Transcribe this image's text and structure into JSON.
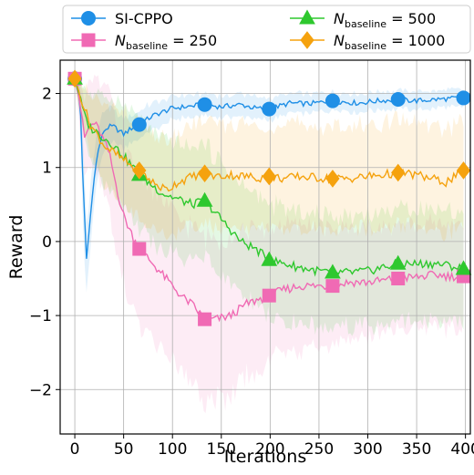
{
  "chart_data": {
    "type": "line",
    "xlabel": "Iterations",
    "ylabel": "Reward",
    "xlim": [
      -15,
      405
    ],
    "ylim": [
      -2.6,
      2.45
    ],
    "x_ticks": [
      0,
      50,
      100,
      150,
      200,
      250,
      300,
      350,
      400
    ],
    "y_ticks": [
      -2,
      -1,
      0,
      1,
      2
    ],
    "y_tick_labels": [
      "−2",
      "−1",
      "0",
      "1",
      "2"
    ],
    "grid": true,
    "legend_position": "top",
    "series": [
      {
        "name": "SI-CPPO",
        "color": "#1f8fe6",
        "marker": "circle",
        "x": [
          0,
          3,
          6,
          9,
          12,
          15,
          20,
          25,
          30,
          35,
          40,
          45,
          50,
          55,
          60,
          66,
          80,
          100,
          120,
          133,
          150,
          170,
          185,
          199,
          220,
          240,
          264,
          290,
          310,
          331,
          350,
          370,
          398
        ],
        "values": [
          2.2,
          2.15,
          1.7,
          0.6,
          -0.25,
          0.2,
          0.9,
          1.3,
          1.5,
          1.55,
          1.55,
          1.5,
          1.45,
          1.5,
          1.55,
          1.58,
          1.7,
          1.8,
          1.83,
          1.85,
          1.82,
          1.85,
          1.8,
          1.79,
          1.87,
          1.86,
          1.9,
          1.87,
          1.9,
          1.92,
          1.9,
          1.92,
          1.94
        ],
        "band_width": [
          0.05,
          0.1,
          0.3,
          0.6,
          0.45,
          0.4,
          0.35,
          0.3,
          0.25,
          0.25,
          0.22,
          0.22,
          0.2,
          0.2,
          0.18,
          0.18,
          0.18,
          0.16,
          0.15,
          0.15,
          0.15,
          0.15,
          0.15,
          0.15,
          0.13,
          0.13,
          0.12,
          0.12,
          0.12,
          0.12,
          0.12,
          0.12,
          0.12
        ],
        "marker_x": [
          0,
          66,
          133,
          199,
          264,
          331,
          398
        ],
        "marker_values": [
          2.2,
          1.58,
          1.85,
          1.79,
          1.9,
          1.92,
          1.94
        ]
      },
      {
        "name": "N_baseline = 250",
        "color": "#f06ab4",
        "marker": "square",
        "x": [
          0,
          5,
          10,
          15,
          20,
          25,
          30,
          35,
          40,
          45,
          50,
          55,
          60,
          66,
          80,
          90,
          100,
          110,
          120,
          133,
          145,
          160,
          175,
          185,
          199,
          215,
          230,
          250,
          264,
          280,
          300,
          320,
          331,
          350,
          370,
          385,
          398
        ],
        "values": [
          2.2,
          1.9,
          1.4,
          1.55,
          1.6,
          1.5,
          1.35,
          1.2,
          0.9,
          0.6,
          0.35,
          0.2,
          0.05,
          -0.1,
          -0.3,
          -0.45,
          -0.6,
          -0.75,
          -0.85,
          -1.05,
          -1.05,
          -1.0,
          -0.85,
          -0.8,
          -0.73,
          -0.65,
          -0.6,
          -0.6,
          -0.6,
          -0.55,
          -0.55,
          -0.52,
          -0.5,
          -0.48,
          -0.45,
          -0.47,
          -0.47
        ],
        "band_width": [
          0.05,
          0.3,
          0.55,
          0.6,
          0.65,
          0.7,
          0.75,
          0.8,
          0.85,
          0.9,
          0.9,
          0.95,
          0.95,
          1.0,
          1.0,
          1.0,
          1.0,
          1.0,
          1.05,
          1.1,
          1.1,
          1.05,
          1.0,
          0.95,
          0.9,
          0.85,
          0.85,
          0.8,
          0.8,
          0.75,
          0.75,
          0.7,
          0.7,
          0.7,
          0.7,
          0.7,
          0.7
        ],
        "marker_x": [
          0,
          66,
          133,
          199,
          264,
          331,
          398
        ],
        "marker_values": [
          2.2,
          -0.1,
          -1.05,
          -0.73,
          -0.6,
          -0.5,
          -0.47
        ]
      },
      {
        "name": "N_baseline = 500",
        "color": "#2ec82e",
        "marker": "triangle",
        "x": [
          0,
          5,
          10,
          15,
          20,
          25,
          30,
          40,
          50,
          60,
          66,
          80,
          90,
          100,
          110,
          120,
          133,
          140,
          150,
          160,
          170,
          185,
          199,
          215,
          230,
          250,
          264,
          280,
          300,
          315,
          331,
          350,
          370,
          385,
          398
        ],
        "values": [
          2.2,
          1.95,
          1.7,
          1.55,
          1.5,
          1.45,
          1.4,
          1.3,
          1.15,
          1.0,
          0.9,
          0.75,
          0.65,
          0.6,
          0.55,
          0.5,
          0.55,
          0.45,
          0.3,
          0.15,
          0.0,
          -0.1,
          -0.25,
          -0.3,
          -0.35,
          -0.4,
          -0.42,
          -0.42,
          -0.4,
          -0.35,
          -0.3,
          -0.3,
          -0.3,
          -0.33,
          -0.37
        ],
        "band_width": [
          0.05,
          0.2,
          0.35,
          0.45,
          0.5,
          0.55,
          0.6,
          0.65,
          0.7,
          0.75,
          0.75,
          0.75,
          0.75,
          0.75,
          0.75,
          0.75,
          0.75,
          0.75,
          0.75,
          0.75,
          0.75,
          0.75,
          0.75,
          0.75,
          0.75,
          0.75,
          0.75,
          0.75,
          0.75,
          0.75,
          0.75,
          0.75,
          0.75,
          0.75,
          0.75
        ],
        "marker_x": [
          0,
          66,
          133,
          199,
          264,
          331,
          398
        ],
        "marker_values": [
          2.2,
          0.9,
          0.55,
          -0.25,
          -0.42,
          -0.3,
          -0.37
        ]
      },
      {
        "name": "N_baseline = 1000",
        "color": "#f5a20e",
        "marker": "diamond",
        "x": [
          0,
          5,
          10,
          15,
          20,
          25,
          30,
          40,
          50,
          60,
          66,
          75,
          85,
          95,
          105,
          115,
          125,
          133,
          145,
          160,
          175,
          190,
          199,
          215,
          230,
          250,
          264,
          280,
          300,
          315,
          331,
          350,
          365,
          380,
          390,
          398
        ],
        "values": [
          2.2,
          2.0,
          1.8,
          1.6,
          1.5,
          1.4,
          1.3,
          1.2,
          1.1,
          1.0,
          0.96,
          0.85,
          0.75,
          0.7,
          0.8,
          0.85,
          0.9,
          0.92,
          0.88,
          0.9,
          0.88,
          0.86,
          0.88,
          0.85,
          0.88,
          0.86,
          0.85,
          0.85,
          0.88,
          0.9,
          0.93,
          0.9,
          0.85,
          0.8,
          0.88,
          0.96
        ],
        "band_width": [
          0.05,
          0.2,
          0.3,
          0.4,
          0.45,
          0.5,
          0.55,
          0.6,
          0.62,
          0.64,
          0.65,
          0.65,
          0.65,
          0.65,
          0.65,
          0.68,
          0.7,
          0.7,
          0.7,
          0.7,
          0.7,
          0.7,
          0.7,
          0.7,
          0.7,
          0.7,
          0.7,
          0.7,
          0.7,
          0.7,
          0.7,
          0.7,
          0.7,
          0.7,
          0.7,
          0.7
        ],
        "marker_x": [
          0,
          66,
          133,
          199,
          264,
          331,
          398
        ],
        "marker_values": [
          2.2,
          0.96,
          0.92,
          0.88,
          0.85,
          0.93,
          0.96
        ]
      }
    ],
    "legend_entries": [
      {
        "text": "SI-CPPO"
      },
      {
        "main": "N",
        "sub": "baseline",
        "suffix": " = 250"
      },
      {
        "main": "N",
        "sub": "baseline",
        "suffix": " = 500"
      },
      {
        "main": "N",
        "sub": "baseline",
        "suffix": " = 1000"
      }
    ]
  }
}
